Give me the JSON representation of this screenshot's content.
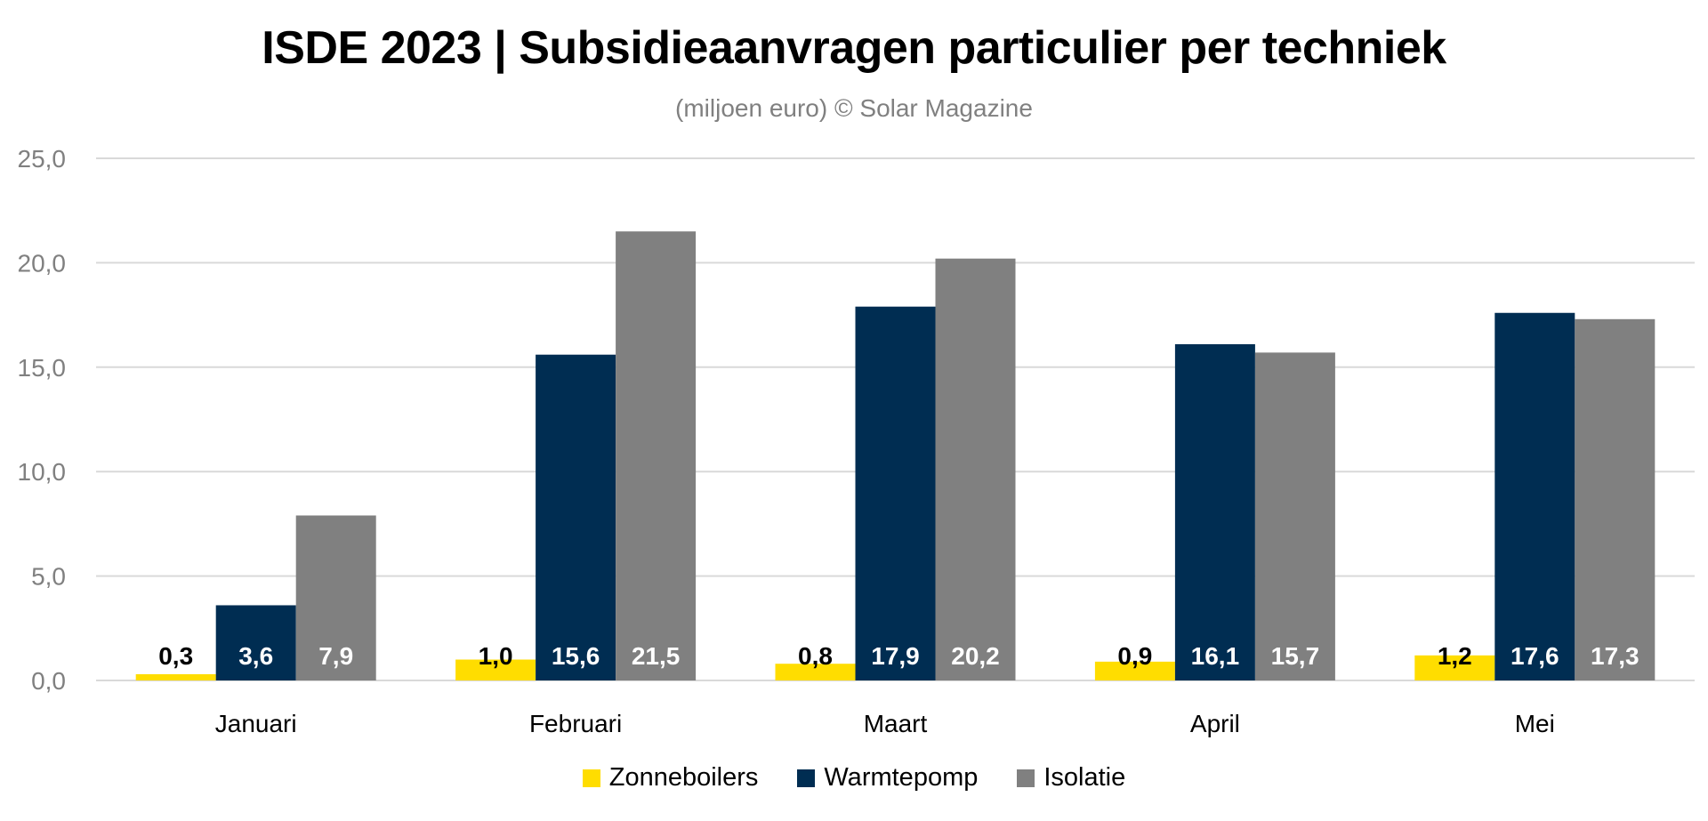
{
  "chart_data": {
    "type": "bar",
    "title": "ISDE 2023 | Subsidieaanvragen particulier per techniek",
    "subtitle": "(miljoen euro) © Solar Magazine",
    "xlabel": "",
    "ylabel": "",
    "categories": [
      "Januari",
      "Februari",
      "Maart",
      "April",
      "Mei"
    ],
    "series": [
      {
        "name": "Zonneboilers",
        "color": "#FFDD00",
        "label_color": "#000000",
        "values": [
          0.3,
          1.0,
          0.8,
          0.9,
          1.2
        ],
        "labels": [
          "0,3",
          "1,0",
          "0,8",
          "0,9",
          "1,2"
        ]
      },
      {
        "name": "Warmtepomp",
        "color": "#002D52",
        "label_color": "#FFFFFF",
        "values": [
          3.6,
          15.6,
          17.9,
          16.1,
          17.6
        ],
        "labels": [
          "3,6",
          "15,6",
          "17,9",
          "16,1",
          "17,6"
        ]
      },
      {
        "name": "Isolatie",
        "color": "#808080",
        "label_color": "#FFFFFF",
        "values": [
          7.9,
          21.5,
          20.2,
          15.7,
          17.3
        ],
        "labels": [
          "7,9",
          "21,5",
          "20,2",
          "15,7",
          "17,3"
        ]
      }
    ],
    "ylim": [
      0,
      25
    ],
    "yticks": [
      0,
      5,
      10,
      15,
      20,
      25
    ],
    "ytick_labels": [
      "0,0",
      "5,0",
      "10,0",
      "15,0",
      "20,0",
      "25,0"
    ],
    "grid": true,
    "gridline_color": "#D9D9D9",
    "legend_position": "bottom-center"
  }
}
